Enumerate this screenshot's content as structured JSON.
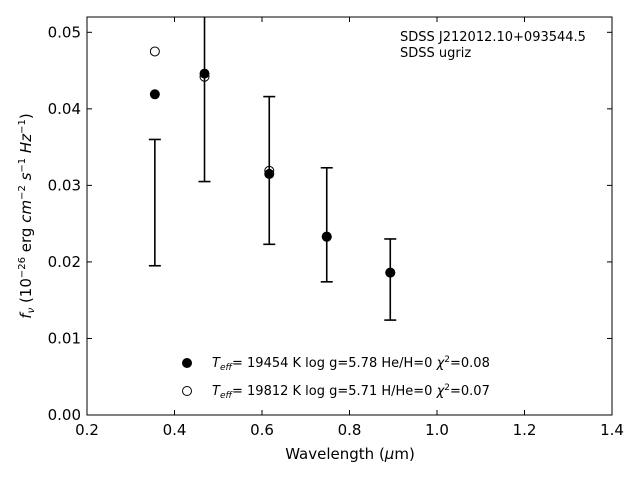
{
  "chart_data": {
    "type": "scatter",
    "xlabel": "Wavelength (μm)",
    "ylabel": "f_ν (10^-26 erg cm^-2 s^-1 Hz^-1)",
    "xlim": [
      0.2,
      1.4
    ],
    "ylim": [
      0.0,
      0.052
    ],
    "xticks": [
      "0.2",
      "0.4",
      "0.6",
      "0.8",
      "1.0",
      "1.2",
      "1.4"
    ],
    "xtick_values": [
      0.2,
      0.4,
      0.6,
      0.8,
      1.0,
      1.2,
      1.4
    ],
    "yticks": [
      "0.00",
      "0.01",
      "0.02",
      "0.03",
      "0.04",
      "0.05"
    ],
    "ytick_values": [
      0.0,
      0.01,
      0.02,
      0.03,
      0.04,
      0.05
    ],
    "annotation": [
      "SDSS J212012.10+093544.5",
      "SDSS ugriz"
    ],
    "observed": {
      "x": [
        0.3551,
        0.4686,
        0.6166,
        0.748,
        0.8932
      ],
      "y_low": [
        0.0195,
        0.0305,
        0.0223,
        0.0174,
        0.0124
      ],
      "y_high": [
        0.036,
        0.0525,
        0.0416,
        0.0323,
        0.023
      ]
    },
    "series": [
      {
        "name": "T_eff= 19454 K  log g=5.78  He/H=0  χ²=0.08",
        "marker": "filled",
        "x": [
          0.3551,
          0.4686,
          0.6166,
          0.748,
          0.8932
        ],
        "y": [
          0.0419,
          0.0446,
          0.0315,
          0.0233,
          0.0186
        ],
        "legend": {
          "teff": "= 19454 K  log g=5.78  He/H=0  ",
          "chi": "=0.08"
        }
      },
      {
        "name": "T_eff= 19812 K  log g=5.71  H/He=0  χ²=0.07",
        "marker": "open",
        "x": [
          0.3551,
          0.4686,
          0.6166,
          0.748,
          0.8932
        ],
        "y": [
          0.0475,
          0.0442,
          0.0319,
          0.0233,
          0.0186
        ],
        "legend": {
          "teff": "= 19812 K  log g=5.71  H/He=0  ",
          "chi": "=0.07"
        }
      }
    ],
    "grid": false,
    "legend_position": "bottom-center"
  }
}
